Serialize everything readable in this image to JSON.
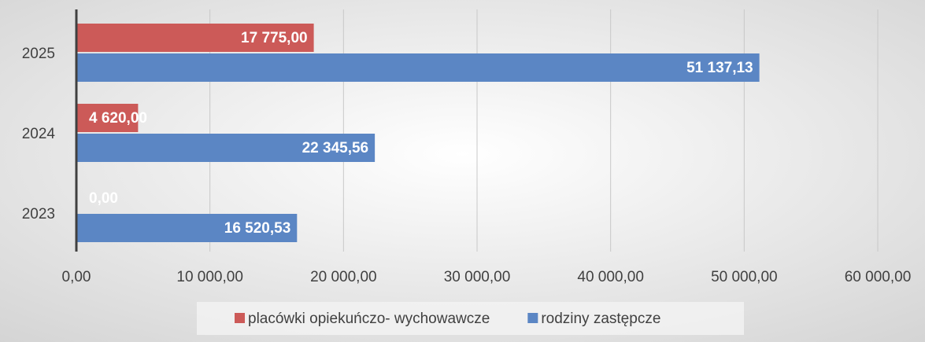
{
  "chart_data": {
    "type": "hbar",
    "categories": [
      "2023",
      "2024",
      "2025"
    ],
    "series": [
      {
        "name": "placówki opiekuńczo- wychowawcze",
        "color": "#cc5a58",
        "values": [
          0,
          4620,
          17775
        ],
        "value_labels": [
          "0,00",
          "4 620,00",
          "17 775,00"
        ]
      },
      {
        "name": "rodziny zastępcze",
        "color": "#5b86c4",
        "values": [
          16520.53,
          22345.56,
          51137.13
        ],
        "value_labels": [
          "16 520,53",
          "22 345,56",
          "51 137,13"
        ]
      }
    ],
    "xlim": [
      0,
      60000
    ],
    "xticks": [
      {
        "value": 0,
        "label": "0,00"
      },
      {
        "value": 10000,
        "label": "10 000,00"
      },
      {
        "value": 20000,
        "label": "20 000,00"
      },
      {
        "value": 30000,
        "label": "30 000,00"
      },
      {
        "value": 40000,
        "label": "40 000,00"
      },
      {
        "value": 50000,
        "label": "50 000,00"
      },
      {
        "value": 60000,
        "label": "60 000,00"
      }
    ],
    "grid": true,
    "legend": "bottom"
  }
}
